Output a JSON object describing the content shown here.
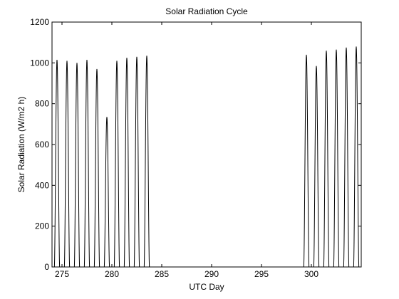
{
  "chart_data": {
    "type": "line",
    "title": "Solar Radiation Cycle",
    "xlabel": "UTC Day",
    "ylabel": "Solar Radiation (W/m2 h)",
    "xlim": [
      274,
      305
    ],
    "ylim": [
      0,
      1200
    ],
    "xticks": [
      275,
      280,
      285,
      290,
      295,
      300
    ],
    "yticks": [
      0,
      200,
      400,
      600,
      800,
      1000,
      1200
    ],
    "grid": false,
    "line_color": "#000000",
    "series": [
      {
        "peaks": [
          {
            "day": 274.5,
            "value": 1015
          },
          {
            "day": 275.5,
            "value": 1010
          },
          {
            "day": 276.5,
            "value": 1000
          },
          {
            "day": 277.5,
            "value": 1015
          },
          {
            "day": 278.5,
            "value": 970
          },
          {
            "day": 279.5,
            "value": 735
          },
          {
            "day": 280.5,
            "value": 1010
          },
          {
            "day": 281.5,
            "value": 1025
          },
          {
            "day": 282.5,
            "value": 1030
          },
          {
            "day": 283.5,
            "value": 1035
          },
          {
            "day": 299.5,
            "value": 1040
          },
          {
            "day": 300.5,
            "value": 985
          },
          {
            "day": 301.5,
            "value": 1060
          },
          {
            "day": 302.5,
            "value": 1065
          },
          {
            "day": 303.5,
            "value": 1075
          },
          {
            "day": 304.5,
            "value": 1080
          }
        ]
      }
    ]
  }
}
